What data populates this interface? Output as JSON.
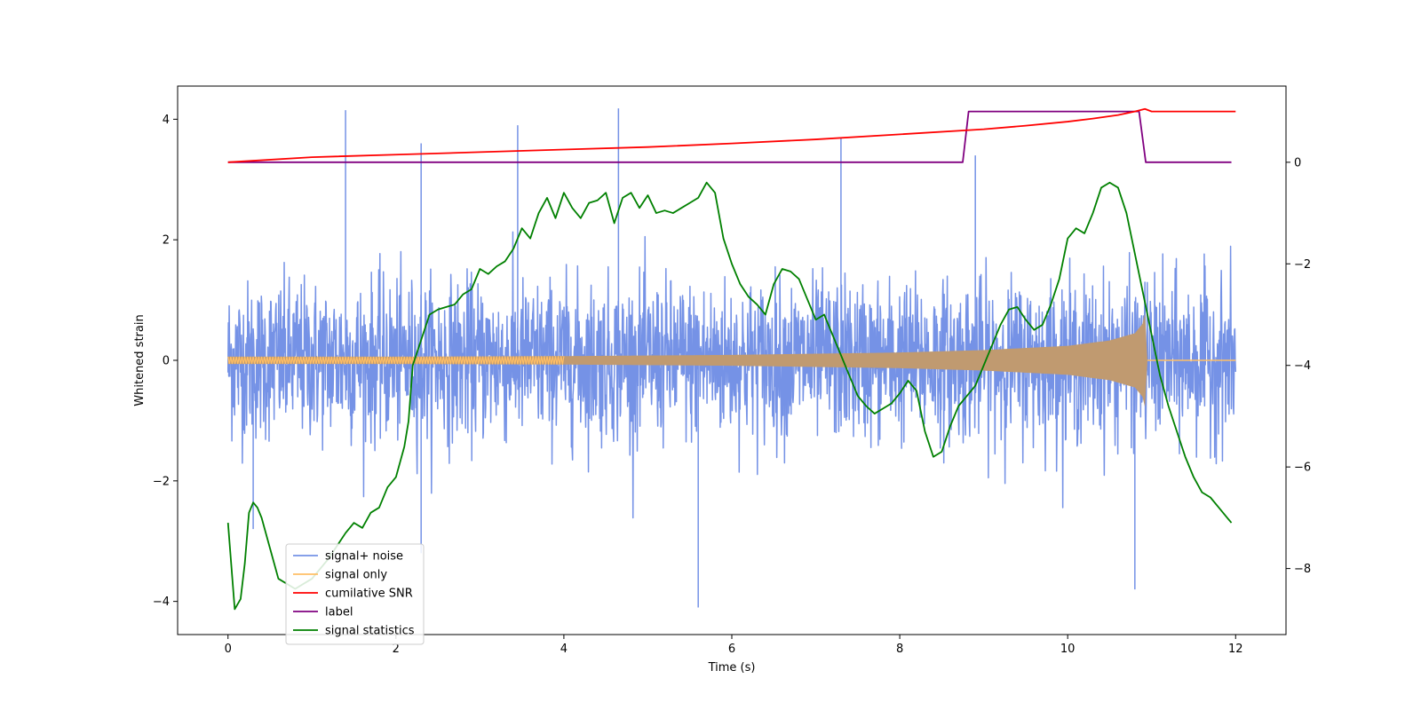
{
  "chart_data": {
    "type": "line",
    "title": "",
    "xlabel": "Time (s)",
    "ylabel": "Whitened strain",
    "ylabel_right": "",
    "xlim": [
      -0.6,
      12.6
    ],
    "ylim": [
      -4.55,
      4.55
    ],
    "ylim_right": [
      -9.3,
      1.5
    ],
    "x_ticks": [
      0,
      2,
      4,
      6,
      8,
      10,
      12
    ],
    "y_ticks": [
      -4,
      -2,
      0,
      2,
      4
    ],
    "y_ticks_right": [
      -8,
      -6,
      -4,
      -2,
      0
    ],
    "x_tick_labels": [
      "0",
      "2",
      "4",
      "6",
      "8",
      "10",
      "12"
    ],
    "y_tick_labels": [
      "−4",
      "−2",
      "0",
      "2",
      "4"
    ],
    "y_tick_labels_right": [
      "−8",
      "−6",
      "−4",
      "−2",
      "0"
    ],
    "legend_position": "lower-left",
    "series": [
      {
        "name": "signal+ noise",
        "axis": "left",
        "color": "#7592e6",
        "kind": "noisy-band",
        "x_range": [
          0,
          12
        ],
        "typical_amplitude": 1.3,
        "spikes": [
          {
            "x": 1.4,
            "y": 4.15
          },
          {
            "x": 2.3,
            "y": 3.6
          },
          {
            "x": 3.45,
            "y": 3.9
          },
          {
            "x": 4.65,
            "y": 4.18
          },
          {
            "x": 7.3,
            "y": 3.7
          },
          {
            "x": 8.9,
            "y": 3.4
          },
          {
            "x": 5.6,
            "y": -4.1
          },
          {
            "x": 10.8,
            "y": -3.8
          },
          {
            "x": 2.3,
            "y": -3.2
          },
          {
            "x": 0.3,
            "y": -2.8
          }
        ]
      },
      {
        "name": "signal only",
        "axis": "left",
        "color": "#ffbf66",
        "fill_color": "#c09a70",
        "kind": "chirp-envelope",
        "envelope": [
          [
            0,
            0.06
          ],
          [
            2,
            0.06
          ],
          [
            4,
            0.07
          ],
          [
            6,
            0.09
          ],
          [
            8,
            0.13
          ],
          [
            9,
            0.17
          ],
          [
            10,
            0.24
          ],
          [
            10.5,
            0.33
          ],
          [
            10.8,
            0.45
          ],
          [
            10.9,
            0.62
          ],
          [
            10.93,
            0.85
          ],
          [
            10.95,
            0.0
          ],
          [
            12,
            0.0
          ]
        ]
      },
      {
        "name": "cumilative SNR",
        "axis": "right",
        "color": "#ff0000",
        "x": [
          0,
          1,
          2,
          3,
          4,
          5,
          6,
          7,
          8,
          9,
          9.5,
          10,
          10.3,
          10.6,
          10.8,
          10.92,
          11,
          12
        ],
        "y": [
          0,
          0.1,
          0.15,
          0.2,
          0.25,
          0.3,
          0.37,
          0.45,
          0.55,
          0.65,
          0.72,
          0.8,
          0.86,
          0.93,
          1.0,
          1.05,
          1.0,
          1.0
        ]
      },
      {
        "name": "label",
        "axis": "right",
        "color": "#800080",
        "x": [
          0,
          8.75,
          8.82,
          10.85,
          10.93,
          11.95
        ],
        "y": [
          0,
          0,
          1,
          1,
          0,
          0
        ]
      },
      {
        "name": "signal statistics",
        "axis": "right",
        "color": "#008000",
        "x": [
          0,
          0.08,
          0.15,
          0.2,
          0.25,
          0.3,
          0.35,
          0.4,
          0.5,
          0.6,
          0.8,
          1.0,
          1.2,
          1.4,
          1.5,
          1.6,
          1.7,
          1.8,
          1.9,
          2.0,
          2.1,
          2.15,
          2.2,
          2.3,
          2.4,
          2.5,
          2.6,
          2.7,
          2.8,
          2.9,
          3.0,
          3.1,
          3.2,
          3.3,
          3.4,
          3.5,
          3.6,
          3.7,
          3.8,
          3.9,
          4.0,
          4.1,
          4.2,
          4.3,
          4.4,
          4.5,
          4.6,
          4.7,
          4.8,
          4.9,
          5.0,
          5.1,
          5.2,
          5.3,
          5.4,
          5.5,
          5.6,
          5.7,
          5.8,
          5.9,
          6.0,
          6.1,
          6.2,
          6.3,
          6.4,
          6.5,
          6.6,
          6.7,
          6.8,
          6.9,
          7.0,
          7.1,
          7.2,
          7.3,
          7.4,
          7.5,
          7.6,
          7.7,
          7.8,
          7.9,
          8.0,
          8.1,
          8.2,
          8.3,
          8.4,
          8.5,
          8.6,
          8.7,
          8.8,
          8.9,
          9.0,
          9.1,
          9.2,
          9.3,
          9.4,
          9.5,
          9.6,
          9.7,
          9.8,
          9.9,
          10.0,
          10.1,
          10.2,
          10.3,
          10.4,
          10.5,
          10.6,
          10.7,
          10.8,
          10.9,
          11.0,
          11.1,
          11.2,
          11.3,
          11.4,
          11.5,
          11.6,
          11.7,
          11.8,
          11.9,
          11.95
        ],
        "y": [
          -7.1,
          -8.8,
          -8.6,
          -7.9,
          -6.9,
          -6.7,
          -6.8,
          -7.0,
          -7.6,
          -8.2,
          -8.4,
          -8.2,
          -7.8,
          -7.3,
          -7.1,
          -7.2,
          -6.9,
          -6.8,
          -6.4,
          -6.2,
          -5.6,
          -5.1,
          -4.0,
          -3.5,
          -3.0,
          -2.9,
          -2.85,
          -2.8,
          -2.6,
          -2.5,
          -2.1,
          -2.2,
          -2.05,
          -1.95,
          -1.7,
          -1.3,
          -1.5,
          -1.0,
          -0.7,
          -1.1,
          -0.6,
          -0.9,
          -1.1,
          -0.8,
          -0.75,
          -0.6,
          -1.2,
          -0.7,
          -0.6,
          -0.9,
          -0.65,
          -1.0,
          -0.95,
          -1.0,
          -0.9,
          -0.8,
          -0.7,
          -0.4,
          -0.6,
          -1.5,
          -2.0,
          -2.4,
          -2.65,
          -2.8,
          -3.0,
          -2.4,
          -2.1,
          -2.15,
          -2.3,
          -2.7,
          -3.1,
          -3.0,
          -3.4,
          -3.8,
          -4.2,
          -4.6,
          -4.8,
          -4.95,
          -4.85,
          -4.75,
          -4.55,
          -4.3,
          -4.5,
          -5.3,
          -5.8,
          -5.7,
          -5.2,
          -4.8,
          -4.6,
          -4.4,
          -4.0,
          -3.6,
          -3.2,
          -2.9,
          -2.85,
          -3.1,
          -3.3,
          -3.2,
          -2.8,
          -2.3,
          -1.5,
          -1.3,
          -1.4,
          -1.0,
          -0.5,
          -0.4,
          -0.5,
          -1.0,
          -1.8,
          -2.6,
          -3.4,
          -4.2,
          -4.8,
          -5.3,
          -5.8,
          -6.2,
          -6.5,
          -6.6,
          -6.8,
          -7.0,
          -7.1
        ]
      }
    ]
  }
}
